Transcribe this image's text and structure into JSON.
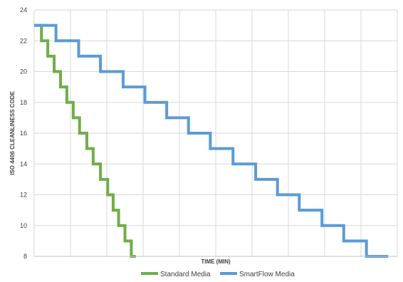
{
  "chart_data": {
    "type": "line",
    "title": "",
    "xlabel": "TIME (MIN)",
    "ylabel": "ISO 4406 CLEANLINESS CODE",
    "ylim": [
      8,
      24
    ],
    "yticks": [
      8,
      10,
      12,
      14,
      16,
      18,
      20,
      22,
      24
    ],
    "xlim": [
      0,
      20
    ],
    "grid": {
      "horizontal": true,
      "vertical": true
    },
    "legend_position": "bottom",
    "series": [
      {
        "name": "Standard Media",
        "color": "#70ad47",
        "step": true,
        "points": [
          [
            0,
            23
          ],
          [
            0.4,
            22
          ],
          [
            0.75,
            21
          ],
          [
            1.1,
            20
          ],
          [
            1.45,
            19
          ],
          [
            1.8,
            18
          ],
          [
            2.15,
            17
          ],
          [
            2.5,
            16
          ],
          [
            2.9,
            15
          ],
          [
            3.25,
            14
          ],
          [
            3.65,
            13
          ],
          [
            4.05,
            12
          ],
          [
            4.35,
            11
          ],
          [
            4.65,
            10
          ],
          [
            5.0,
            9
          ],
          [
            5.35,
            8
          ],
          [
            5.6,
            8
          ]
        ]
      },
      {
        "name": "SmartFlow Media",
        "color": "#5b9bd5",
        "step": true,
        "points": [
          [
            0,
            23
          ],
          [
            1.2,
            22
          ],
          [
            2.45,
            21
          ],
          [
            3.65,
            20
          ],
          [
            4.9,
            19
          ],
          [
            6.1,
            18
          ],
          [
            7.3,
            17
          ],
          [
            8.5,
            16
          ],
          [
            9.7,
            15
          ],
          [
            10.95,
            14
          ],
          [
            12.2,
            13
          ],
          [
            13.4,
            12
          ],
          [
            14.6,
            11
          ],
          [
            15.85,
            10
          ],
          [
            17.05,
            9
          ],
          [
            18.3,
            8
          ],
          [
            19.5,
            8
          ]
        ]
      }
    ]
  }
}
